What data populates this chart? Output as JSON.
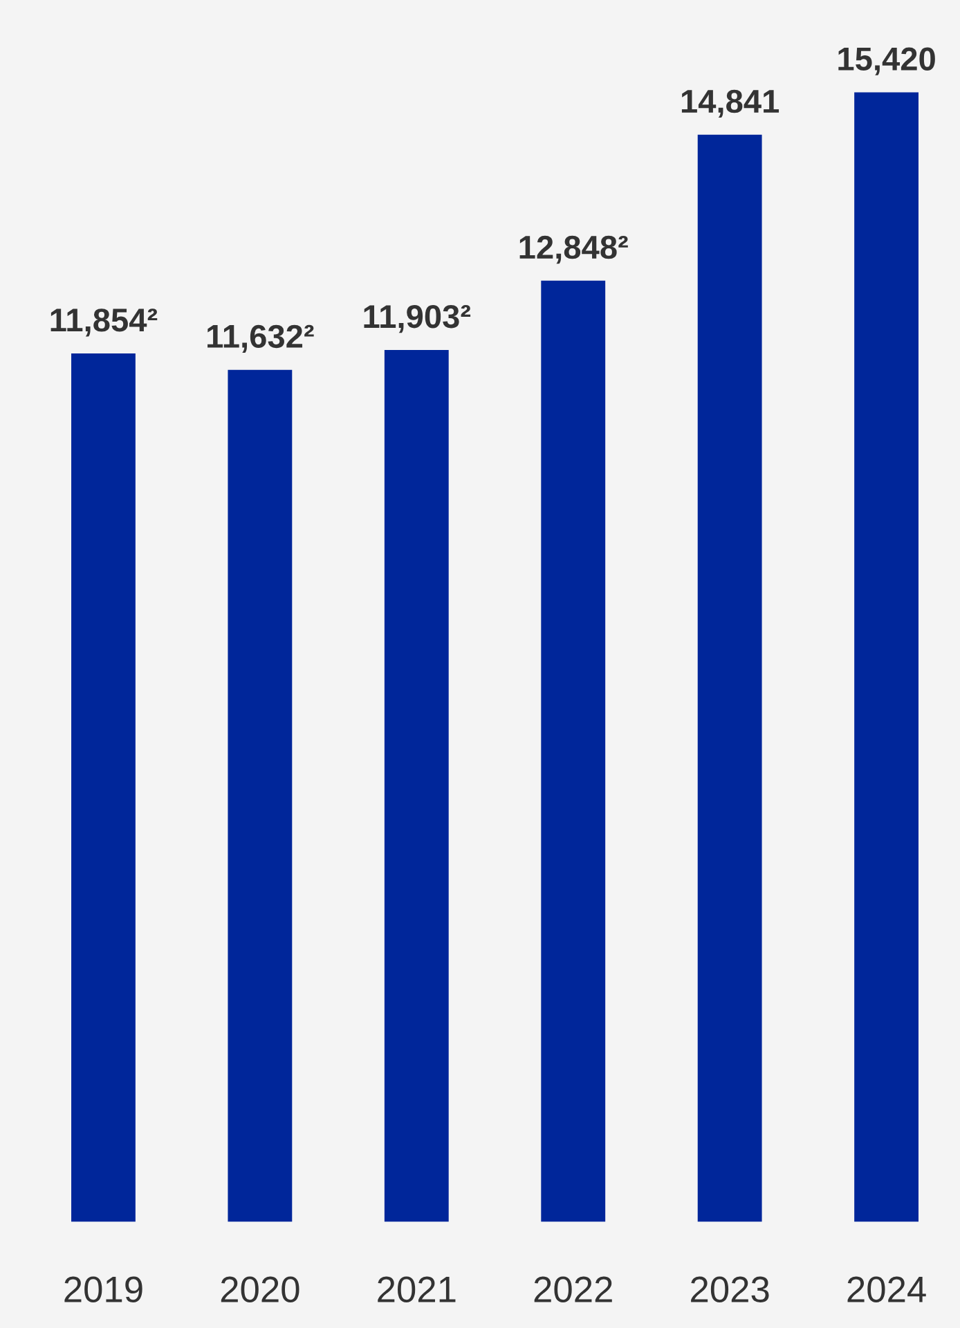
{
  "chart_data": {
    "type": "bar",
    "categories": [
      "2019",
      "2020",
      "2021",
      "2022",
      "2023",
      "2024"
    ],
    "values": [
      11854,
      11632,
      11903,
      12848,
      14841,
      15420
    ],
    "value_labels": [
      "11,854²",
      "11,632²",
      "11,903²",
      "12,848²",
      "14,841",
      "15,420"
    ],
    "color": "#00269a",
    "grid": false,
    "legend": false,
    "tick_labels": "x"
  }
}
